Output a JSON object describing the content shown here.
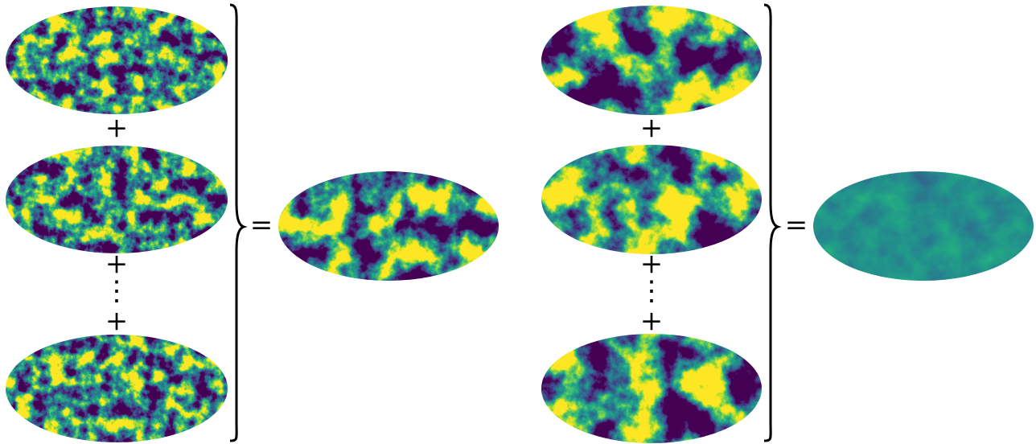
{
  "left_group": {
    "operators": [
      "+",
      "⋮",
      "+"
    ],
    "equals": "="
  },
  "right_group": {
    "operators": [
      "+",
      "+",
      "⋮",
      "+"
    ],
    "equals": "="
  }
}
